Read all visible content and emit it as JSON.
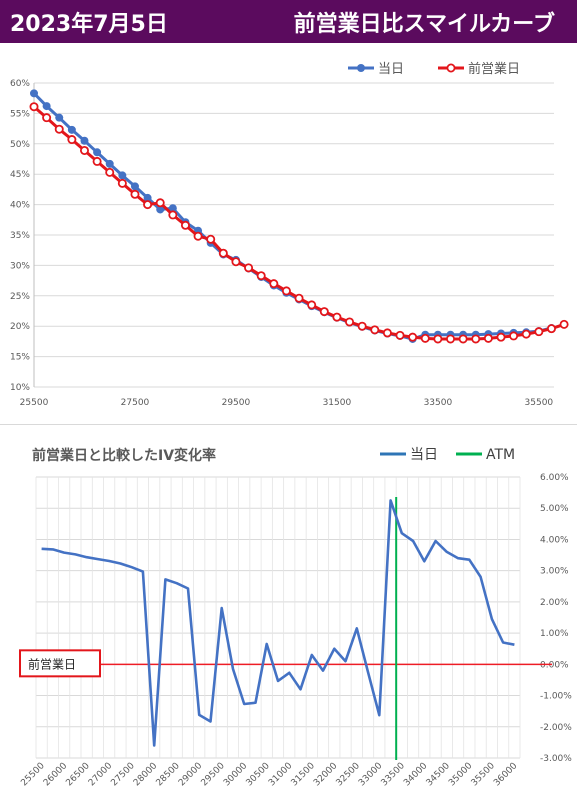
{
  "header": {
    "date": "2023年7月5日",
    "title": "前営業日比スマイルカーブ"
  },
  "chart_data": [
    {
      "type": "line",
      "title": "",
      "legend": [
        "当日",
        "前営業日"
      ],
      "legend_position": "top-right",
      "xlim": [
        25500,
        35800
      ],
      "ylim": [
        0.1,
        0.6
      ],
      "x_ticks": [
        "25500",
        "27500",
        "29500",
        "31500",
        "33500",
        "35500"
      ],
      "y_ticks": [
        "10%",
        "15%",
        "20%",
        "25%",
        "30%",
        "35%",
        "40%",
        "45%",
        "50%",
        "55%",
        "60%"
      ],
      "grid": "horizontal",
      "series": [
        {
          "name": "当日",
          "color": "#4472c4",
          "x": [
            25500,
            25750,
            26000,
            26250,
            26500,
            26750,
            27000,
            27250,
            27500,
            27750,
            28000,
            28250,
            28500,
            28750,
            29000,
            29250,
            29500,
            29750,
            30000,
            30250,
            30500,
            30750,
            31000,
            31250,
            31500,
            31750,
            32000,
            32250,
            32500,
            32750,
            33000,
            33250,
            33500,
            33750,
            34000,
            34250,
            34500,
            34750,
            35000,
            35250,
            35500,
            35750
          ],
          "y": [
            0.583,
            0.562,
            0.543,
            0.523,
            0.505,
            0.486,
            0.467,
            0.448,
            0.43,
            0.411,
            0.392,
            0.394,
            0.371,
            0.357,
            0.337,
            0.318,
            0.309,
            0.295,
            0.281,
            0.267,
            0.255,
            0.244,
            0.233,
            0.223,
            0.214,
            0.206,
            0.199,
            0.193,
            0.188,
            0.184,
            0.179,
            0.186,
            0.186,
            0.186,
            0.186,
            0.186,
            0.187,
            0.188,
            0.189,
            0.19,
            0.192,
            0.197
          ]
        },
        {
          "name": "前営業日",
          "color": "#e3161b",
          "x": [
            25500,
            25750,
            26000,
            26250,
            26500,
            26750,
            27000,
            27250,
            27500,
            27750,
            28000,
            28250,
            28500,
            28750,
            29000,
            29250,
            29500,
            29750,
            30000,
            30250,
            30500,
            30750,
            31000,
            31250,
            31500,
            31750,
            32000,
            32250,
            32500,
            32750,
            33000,
            33250,
            33500,
            33750,
            34000,
            34250,
            34500,
            34750,
            35000,
            35250,
            35500,
            35750,
            36000
          ],
          "y": [
            0.561,
            0.543,
            0.524,
            0.507,
            0.489,
            0.471,
            0.453,
            0.435,
            0.417,
            0.4,
            0.403,
            0.383,
            0.366,
            0.348,
            0.343,
            0.32,
            0.306,
            0.296,
            0.283,
            0.27,
            0.258,
            0.246,
            0.235,
            0.224,
            0.215,
            0.207,
            0.2,
            0.194,
            0.189,
            0.185,
            0.182,
            0.18,
            0.179,
            0.179,
            0.179,
            0.179,
            0.18,
            0.182,
            0.184,
            0.187,
            0.191,
            0.196,
            0.203
          ]
        }
      ]
    },
    {
      "type": "line",
      "title": "前営業日と比較したIV変化率",
      "legend": [
        "当日",
        "ATM"
      ],
      "legend_position": "top-right",
      "baseline_label": "前営業日",
      "ylim": [
        -0.03,
        0.06
      ],
      "y_ticks": [
        "6.00%",
        "5.00%",
        "4.00%",
        "3.00%",
        "2.00%",
        "1.00%",
        "0.00%",
        "-1.00%",
        "-2.00%",
        "-3.00%"
      ],
      "categories": [
        "25500",
        "25750",
        "26000",
        "26250",
        "26500",
        "26750",
        "27000",
        "27250",
        "27500",
        "27750",
        "28000",
        "28250",
        "28500",
        "28750",
        "29000",
        "29250",
        "29500",
        "29750",
        "30000",
        "30250",
        "30500",
        "30750",
        "31000",
        "31250",
        "31500",
        "31750",
        "32000",
        "32250",
        "32500",
        "32750",
        "33000",
        "33250",
        "33500",
        "33750",
        "34000",
        "34250",
        "34500",
        "34750",
        "35000",
        "35250",
        "35500",
        "35750",
        "36000"
      ],
      "x_tick_labels": [
        "25500",
        "26000",
        "26500",
        "27000",
        "27500",
        "28000",
        "28500",
        "29000",
        "29500",
        "30000",
        "30500",
        "31000",
        "31500",
        "32000",
        "32500",
        "33000",
        "33500",
        "34000",
        "34500",
        "35000",
        "35500",
        "36000"
      ],
      "atm": "33375",
      "series": [
        {
          "name": "当日",
          "color": "#4472c4",
          "values": [
            0.037,
            0.0368,
            0.0358,
            0.0352,
            0.0343,
            0.0337,
            0.0331,
            0.0323,
            0.0311,
            0.0297,
            -0.026,
            0.0272,
            0.026,
            0.0243,
            -0.0162,
            -0.0183,
            0.018,
            -0.0015,
            -0.0127,
            -0.0123,
            0.0065,
            -0.0053,
            -0.0027,
            -0.008,
            0.003,
            -0.002,
            0.005,
            0.001,
            0.0115,
            -0.0025,
            -0.0163,
            0.0525,
            0.042,
            0.0395,
            0.033,
            0.0395,
            0.036,
            0.034,
            0.0335,
            0.028,
            0.0145,
            0.007,
            0.0063
          ]
        }
      ]
    }
  ]
}
